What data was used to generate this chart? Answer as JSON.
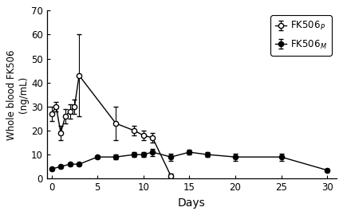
{
  "fk506p_x": [
    0,
    0.5,
    1,
    1.5,
    2,
    2.5,
    3,
    7,
    9,
    10,
    11,
    13
  ],
  "fk506p_y": [
    27,
    30,
    19,
    26,
    28,
    30,
    43,
    23,
    20,
    18,
    17,
    1
  ],
  "fk506p_yerr": [
    3,
    2,
    3,
    3,
    3,
    3,
    17,
    7,
    2,
    2,
    2,
    1
  ],
  "fk506m_x": [
    0,
    1,
    2,
    3,
    5,
    7,
    9,
    10,
    11,
    13,
    15,
    17,
    20,
    25,
    30
  ],
  "fk506m_y": [
    4,
    5,
    6,
    6,
    9,
    9,
    10,
    10,
    11,
    9,
    11,
    10,
    9,
    9,
    3.5
  ],
  "fk506m_yerr": [
    0.5,
    0.5,
    0.5,
    0.5,
    0.5,
    1,
    1,
    1,
    1.5,
    1.5,
    1,
    1,
    1.5,
    1.5,
    0.5
  ],
  "xlabel": "Days",
  "ylabel": "Whole blood FK506\n(ng/mL)",
  "xlim": [
    -0.5,
    31
  ],
  "ylim": [
    0,
    70
  ],
  "yticks": [
    0,
    10,
    20,
    30,
    40,
    50,
    60,
    70
  ],
  "xticks": [
    0,
    5,
    10,
    15,
    20,
    25,
    30
  ],
  "legend_p": "FK506$_P$",
  "legend_m": "FK506$_M$",
  "line_color": "#000000",
  "bg_color": "#ffffff"
}
